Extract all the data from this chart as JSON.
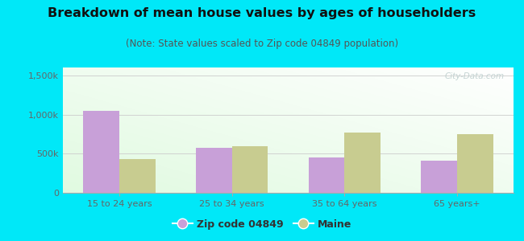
{
  "title": "Breakdown of mean house values by ages of householders",
  "subtitle": "(Note: State values scaled to Zip code 04849 population)",
  "categories": [
    "15 to 24 years",
    "25 to 34 years",
    "35 to 64 years",
    "65 years+"
  ],
  "zip_values": [
    1050000,
    575000,
    450000,
    415000
  ],
  "state_values": [
    430000,
    590000,
    770000,
    750000
  ],
  "zip_color": "#c8a0d8",
  "state_color": "#c8cc90",
  "ylim": [
    0,
    1600000
  ],
  "yticks": [
    0,
    500000,
    1000000,
    1500000
  ],
  "ytick_labels": [
    "0",
    "500k",
    "1,000k",
    "1,500k"
  ],
  "background_outer": "#00e8f8",
  "legend_zip_label": "Zip code 04849",
  "legend_state_label": "Maine",
  "watermark": "City-Data.com",
  "title_fontsize": 11.5,
  "subtitle_fontsize": 8.5,
  "bar_width": 0.32,
  "title_color": "#111111",
  "subtitle_color": "#555555",
  "tick_color": "#666666",
  "grid_color": "#cccccc"
}
